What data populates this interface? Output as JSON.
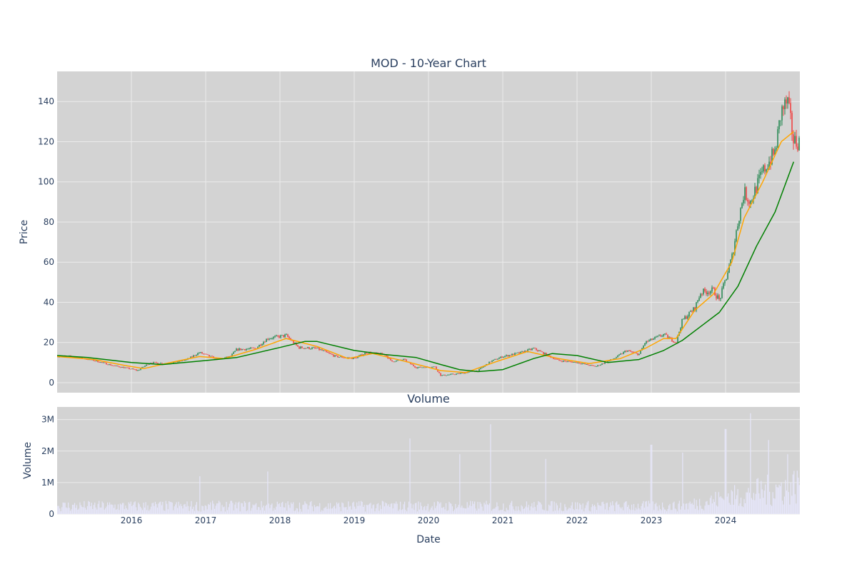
{
  "colors": {
    "plot_bg": "#d3d3d3",
    "grid": "#ebebeb",
    "candle_up": "#2e8b57",
    "candle_down": "#ef4444",
    "ma_short": "#ffa500",
    "ma_long": "#008000",
    "volume": "#e6e6fa",
    "text": "#2a3f5f"
  },
  "chart_data": [
    {
      "type": "candlestick",
      "title": "MOD - 10-Year Chart",
      "ylabel": "Price",
      "xlabel": "",
      "ylim": [
        -5,
        155
      ],
      "yticks": [
        0,
        20,
        40,
        60,
        80,
        100,
        120,
        140
      ],
      "grid": true,
      "legend": "none",
      "series": [
        {
          "kind": "price",
          "points": [
            [
              "2015-01",
              13.2
            ],
            [
              "2015-04",
              12.8
            ],
            [
              "2015-07",
              11.0
            ],
            [
              "2015-10",
              8.5
            ],
            [
              "2016-01",
              6.8
            ],
            [
              "2016-02",
              6.0
            ],
            [
              "2016-04",
              10.0
            ],
            [
              "2016-07",
              9.5
            ],
            [
              "2016-10",
              11.5
            ],
            [
              "2016-12",
              15.0
            ],
            [
              "2017-03",
              11.5
            ],
            [
              "2017-05",
              13.0
            ],
            [
              "2017-06",
              16.5
            ],
            [
              "2017-09",
              17.0
            ],
            [
              "2017-11",
              22.0
            ],
            [
              "2018-02",
              23.5
            ],
            [
              "2018-04",
              17.5
            ],
            [
              "2018-07",
              17.0
            ],
            [
              "2018-10",
              13.0
            ],
            [
              "2019-01",
              12.0
            ],
            [
              "2019-03",
              15.0
            ],
            [
              "2019-06",
              14.0
            ],
            [
              "2019-07",
              10.5
            ],
            [
              "2019-09",
              11.5
            ],
            [
              "2019-11",
              7.5
            ],
            [
              "2020-02",
              8.0
            ],
            [
              "2020-03",
              3.5
            ],
            [
              "2020-06",
              4.5
            ],
            [
              "2020-09",
              6.0
            ],
            [
              "2020-11",
              10.5
            ],
            [
              "2021-01",
              13.0
            ],
            [
              "2021-04",
              15.0
            ],
            [
              "2021-06",
              17.0
            ],
            [
              "2021-08",
              14.0
            ],
            [
              "2021-10",
              11.0
            ],
            [
              "2022-01",
              10.0
            ],
            [
              "2022-04",
              8.0
            ],
            [
              "2022-07",
              12.0
            ],
            [
              "2022-09",
              16.0
            ],
            [
              "2022-11",
              14.0
            ],
            [
              "2022-12",
              20.0
            ],
            [
              "2023-03",
              24.0
            ],
            [
              "2023-05",
              20.0
            ],
            [
              "2023-06",
              31.0
            ],
            [
              "2023-08",
              37.0
            ],
            [
              "2023-09",
              45.0
            ],
            [
              "2023-11",
              46.0
            ],
            [
              "2023-12",
              41.0
            ],
            [
              "2024-02",
              62.0
            ],
            [
              "2024-03",
              80.0
            ],
            [
              "2024-04",
              95.0
            ],
            [
              "2024-05",
              90.0
            ],
            [
              "2024-07",
              105.0
            ],
            [
              "2024-09",
              115.0
            ],
            [
              "2024-10",
              135.0
            ],
            [
              "2024-11",
              140.0
            ],
            [
              "2024-12",
              120.0
            ]
          ]
        },
        {
          "kind": "moving-average-short",
          "points": [
            [
              "2015-01",
              13.0
            ],
            [
              "2015-07",
              11.5
            ],
            [
              "2015-12",
              8.5
            ],
            [
              "2016-03",
              7.0
            ],
            [
              "2016-07",
              9.8
            ],
            [
              "2016-12",
              13.0
            ],
            [
              "2017-04",
              12.0
            ],
            [
              "2017-09",
              16.5
            ],
            [
              "2018-02",
              22.0
            ],
            [
              "2018-07",
              18.0
            ],
            [
              "2018-12",
              12.0
            ],
            [
              "2019-04",
              14.5
            ],
            [
              "2019-10",
              10.0
            ],
            [
              "2020-03",
              6.0
            ],
            [
              "2020-07",
              5.0
            ],
            [
              "2020-12",
              10.5
            ],
            [
              "2021-05",
              15.5
            ],
            [
              "2021-10",
              12.0
            ],
            [
              "2022-03",
              9.5
            ],
            [
              "2022-08",
              12.0
            ],
            [
              "2022-12",
              17.0
            ],
            [
              "2023-03",
              22.0
            ],
            [
              "2023-05",
              22.0
            ],
            [
              "2023-08",
              36.0
            ],
            [
              "2023-11",
              44.0
            ],
            [
              "2024-02",
              60.0
            ],
            [
              "2024-04",
              82.0
            ],
            [
              "2024-07",
              100.0
            ],
            [
              "2024-10",
              120.0
            ],
            [
              "2024-12",
              125.0
            ]
          ]
        },
        {
          "kind": "moving-average-long",
          "points": [
            [
              "2015-01",
              13.5
            ],
            [
              "2015-06",
              12.5
            ],
            [
              "2016-01",
              10.0
            ],
            [
              "2016-06",
              9.0
            ],
            [
              "2017-01",
              11.0
            ],
            [
              "2017-06",
              12.5
            ],
            [
              "2018-01",
              17.5
            ],
            [
              "2018-05",
              20.5
            ],
            [
              "2018-07",
              20.5
            ],
            [
              "2019-01",
              16.0
            ],
            [
              "2019-06",
              14.0
            ],
            [
              "2019-11",
              12.5
            ],
            [
              "2020-03",
              9.0
            ],
            [
              "2020-06",
              6.5
            ],
            [
              "2020-09",
              5.5
            ],
            [
              "2021-01",
              6.5
            ],
            [
              "2021-06",
              12.0
            ],
            [
              "2021-09",
              14.5
            ],
            [
              "2022-01",
              13.5
            ],
            [
              "2022-06",
              10.0
            ],
            [
              "2022-11",
              11.5
            ],
            [
              "2023-03",
              16.0
            ],
            [
              "2023-06",
              21.0
            ],
            [
              "2023-09",
              28.0
            ],
            [
              "2023-12",
              35.0
            ],
            [
              "2024-03",
              48.0
            ],
            [
              "2024-06",
              68.0
            ],
            [
              "2024-09",
              85.0
            ],
            [
              "2024-12",
              110.0
            ]
          ]
        }
      ]
    },
    {
      "type": "bar",
      "title": "Volume",
      "ylabel": "Volume",
      "xlabel": "Date",
      "ylim": [
        0,
        3400000
      ],
      "yticks": [
        0,
        1000000,
        2000000,
        3000000
      ],
      "ytick_labels": [
        "0",
        "1M",
        "2M",
        "3M"
      ],
      "xticks": [
        "2016",
        "2017",
        "2018",
        "2019",
        "2020",
        "2021",
        "2022",
        "2023",
        "2024"
      ],
      "grid": true,
      "peaks": [
        [
          "2016-12",
          1200000
        ],
        [
          "2017-11",
          1350000
        ],
        [
          "2019-10",
          2400000
        ],
        [
          "2020-06",
          1900000
        ],
        [
          "2020-11",
          2850000
        ],
        [
          "2021-08",
          1750000
        ],
        [
          "2023-01",
          2200000
        ],
        [
          "2023-06",
          1950000
        ],
        [
          "2024-01",
          2700000
        ],
        [
          "2024-05",
          3200000
        ],
        [
          "2024-08",
          2350000
        ],
        [
          "2024-11",
          1900000
        ]
      ]
    }
  ]
}
